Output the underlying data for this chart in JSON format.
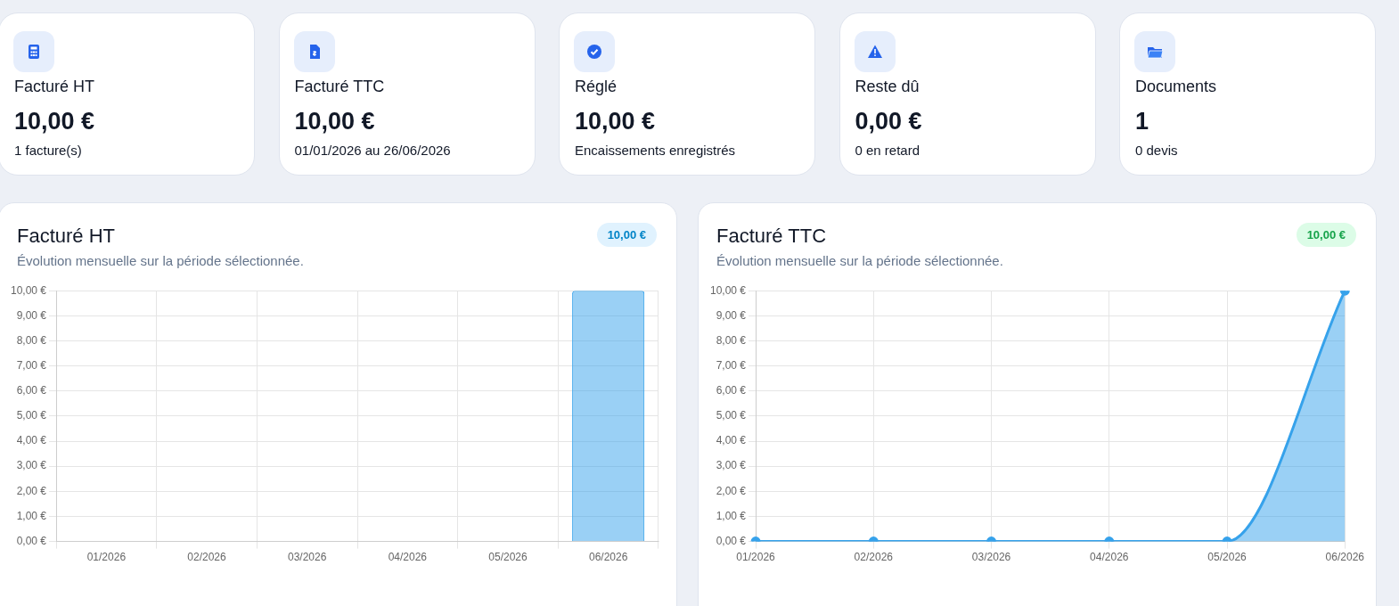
{
  "chart_data": [
    {
      "type": "other",
      "title": "Facturé HT",
      "annotations": [
        "10,00 €",
        "1 facture(s)"
      ]
    },
    {
      "type": "other",
      "title": "Facturé TTC",
      "annotations": [
        "10,00 €",
        "01/01/2026 au 26/06/2026"
      ]
    },
    {
      "type": "other",
      "title": "Réglé",
      "annotations": [
        "10,00 €",
        "Encaissements enregistrés"
      ]
    },
    {
      "type": "other",
      "title": "Reste dû",
      "annotations": [
        "0,00 €",
        "0 en retard"
      ]
    },
    {
      "type": "other",
      "title": "Documents",
      "annotations": [
        "1",
        "0 devis"
      ]
    },
    {
      "type": "bar",
      "title": "Facturé HT",
      "subtitle": "Évolution mensuelle sur la période sélectionnée.",
      "annotations": [
        "10,00 €"
      ],
      "categories": [
        "01/2026",
        "02/2026",
        "03/2026",
        "04/2026",
        "05/2026",
        "06/2026"
      ],
      "values": [
        0,
        0,
        0,
        0,
        0,
        10
      ],
      "color": "#36a2eb",
      "ylim": [
        0,
        10
      ],
      "yticks": [
        {
          "value": 0,
          "label": "0,00 €"
        },
        {
          "value": 1,
          "label": "1,00 €"
        },
        {
          "value": 2,
          "label": "2,00 €"
        },
        {
          "value": 3,
          "label": "3,00 €"
        },
        {
          "value": 4,
          "label": "4,00 €"
        },
        {
          "value": 5,
          "label": "5,00 €"
        },
        {
          "value": 6,
          "label": "6,00 €"
        },
        {
          "value": 7,
          "label": "7,00 €"
        },
        {
          "value": 8,
          "label": "8,00 €"
        },
        {
          "value": 9,
          "label": "9,00 €"
        },
        {
          "value": 10,
          "label": "10,00 €"
        }
      ],
      "grid": true
    },
    {
      "type": "area",
      "title": "Facturé TTC",
      "subtitle": "Évolution mensuelle sur la période sélectionnée.",
      "annotations": [
        "10,00 €"
      ],
      "categories": [
        "01/2026",
        "02/2026",
        "03/2026",
        "04/2026",
        "05/2026",
        "06/2026"
      ],
      "values": [
        0,
        0,
        0,
        0,
        0,
        10
      ],
      "color": "#36a2eb",
      "ylim": [
        0,
        10
      ],
      "yticks": [
        {
          "value": 0,
          "label": "0,00 €"
        },
        {
          "value": 1,
          "label": "1,00 €"
        },
        {
          "value": 2,
          "label": "2,00 €"
        },
        {
          "value": 3,
          "label": "3,00 €"
        },
        {
          "value": 4,
          "label": "4,00 €"
        },
        {
          "value": 5,
          "label": "5,00 €"
        },
        {
          "value": 6,
          "label": "6,00 €"
        },
        {
          "value": 7,
          "label": "7,00 €"
        },
        {
          "value": 8,
          "label": "8,00 €"
        },
        {
          "value": 9,
          "label": "9,00 €"
        },
        {
          "value": 10,
          "label": "10,00 €"
        }
      ],
      "grid": true,
      "marker": "circle"
    }
  ]
}
